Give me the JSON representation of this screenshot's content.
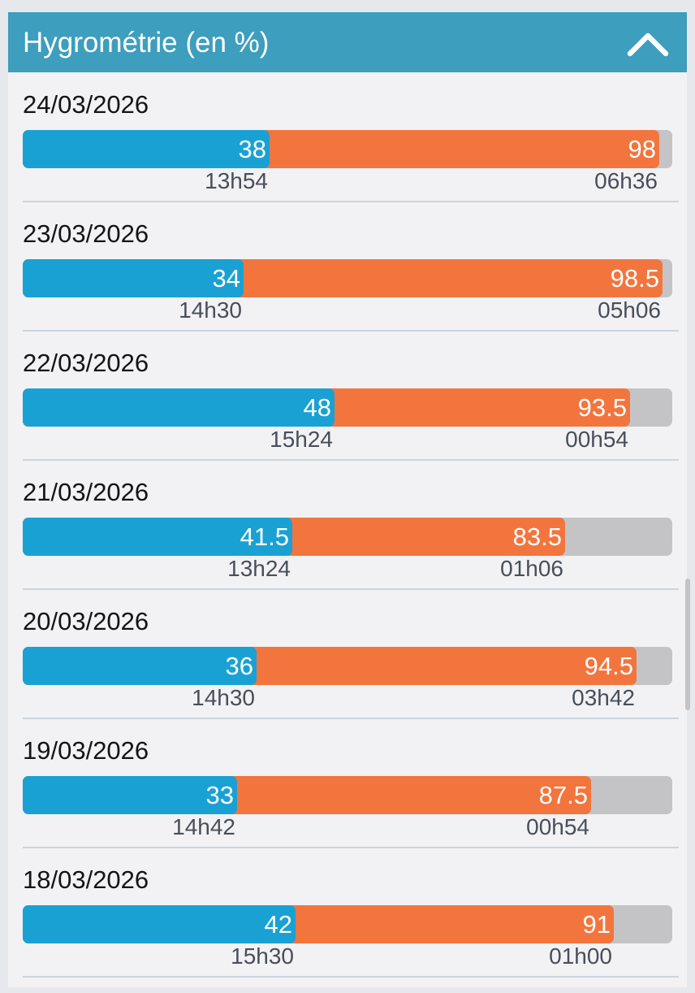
{
  "header": {
    "title": "Hygrométrie (en %)",
    "toggle_icon": "chevron-up-icon"
  },
  "colors": {
    "header": "#3d9ebd",
    "min": "#1aa1d4",
    "max": "#f2753e",
    "track": "#c4c4c6"
  },
  "scale": {
    "min": 0,
    "max": 100
  },
  "days": [
    {
      "date": "24/03/2026",
      "min": "38",
      "min_time": "13h54",
      "max": "98",
      "max_time": "06h36"
    },
    {
      "date": "23/03/2026",
      "min": "34",
      "min_time": "14h30",
      "max": "98.5",
      "max_time": "05h06"
    },
    {
      "date": "22/03/2026",
      "min": "48",
      "min_time": "15h24",
      "max": "93.5",
      "max_time": "00h54"
    },
    {
      "date": "21/03/2026",
      "min": "41.5",
      "min_time": "13h24",
      "max": "83.5",
      "max_time": "01h06"
    },
    {
      "date": "20/03/2026",
      "min": "36",
      "min_time": "14h30",
      "max": "94.5",
      "max_time": "03h42"
    },
    {
      "date": "19/03/2026",
      "min": "33",
      "min_time": "14h42",
      "max": "87.5",
      "max_time": "00h54"
    },
    {
      "date": "18/03/2026",
      "min": "42",
      "min_time": "15h30",
      "max": "91",
      "max_time": "01h00"
    }
  ]
}
